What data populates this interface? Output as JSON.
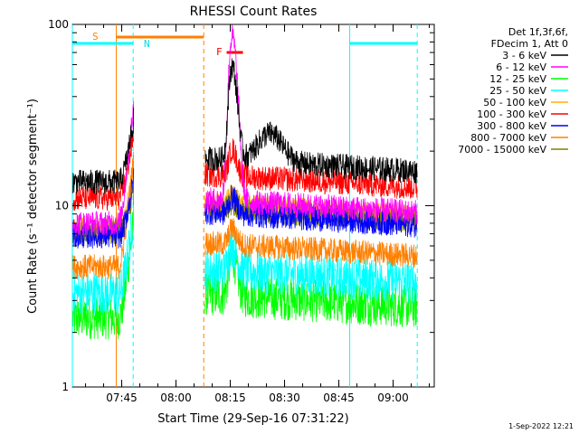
{
  "chart_data": {
    "type": "line",
    "title": "RHESSI Count Rates",
    "xlabel": "Start Time (29-Sep-16 07:31:22)",
    "ylabel": "Count Rate (s⁻¹ detector segment⁻¹)",
    "x_range": [
      "07:31:22",
      "09:11:22"
    ],
    "x_ticks": [
      "07:45",
      "08:00",
      "08:15",
      "08:30",
      "08:45",
      "09:00"
    ],
    "y_scale": "log",
    "ylim": [
      1,
      100
    ],
    "y_ticks": [
      "1",
      "10",
      "100"
    ],
    "legend_position": "right",
    "legend_header": [
      "Det 1f,3f,6f,",
      "FDecim 1, Att 0"
    ],
    "series": [
      {
        "name": "3 - 6 keV",
        "color": "#000000",
        "base": 13.5,
        "peak": 55,
        "pre_end": 30
      },
      {
        "name": "6 - 12 keV",
        "color": "#ff00ff",
        "base": 8,
        "peak": 85,
        "pre_end": 35
      },
      {
        "name": "12 - 25 keV",
        "color": "#00ff00",
        "base": 2.4,
        "peak": 4.5,
        "pre_end": 8
      },
      {
        "name": "25 - 50 keV",
        "color": "#00ffff",
        "base": 3.3,
        "peak": 5,
        "pre_end": 9
      },
      {
        "name": "50 - 100 keV",
        "color": "#ffb000",
        "base": 7.5,
        "peak": 9,
        "pre_end": 15
      },
      {
        "name": "100 - 300 keV",
        "color": "#ff0000",
        "base": 11,
        "peak": 17,
        "pre_end": 25
      },
      {
        "name": "300 - 800 keV",
        "color": "#0000ff",
        "base": 6.8,
        "peak": 9,
        "pre_end": 14
      },
      {
        "name": "800 - 7000 keV",
        "color": "#ff8000",
        "base": 4.6,
        "peak": 6,
        "pre_end": 18
      },
      {
        "name": "7000 - 15000 keV",
        "color": "#808000",
        "base": 7.2,
        "peak": 8,
        "pre_end": 12
      }
    ],
    "annotations": [
      {
        "text": "S",
        "color": "#ff8000"
      },
      {
        "text": "N",
        "color": "#00ffff"
      },
      {
        "text": "F",
        "color": "#ff0000"
      }
    ],
    "footer_date": "1-Sep-2022 12:21"
  }
}
